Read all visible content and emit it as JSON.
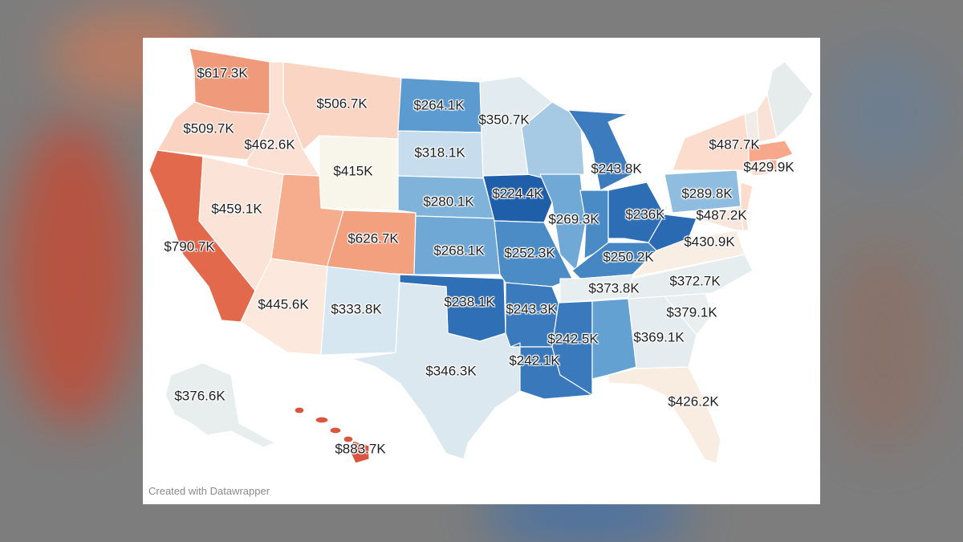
{
  "credit": "Created with Datawrapper",
  "colors": {
    "page_backdrop": "#7d7d7d",
    "card_background": "#ffffff",
    "state_border": "#ffffff",
    "label_text": "#1e1e1e",
    "credit_text": "#8a8a8a"
  },
  "states": [
    {
      "id": "washington",
      "label": "$617.3K",
      "color": "#ef9a7b"
    },
    {
      "id": "oregon",
      "label": "$509.7K",
      "color": "#fbd3c2"
    },
    {
      "id": "california",
      "label": "$790.7K",
      "color": "#e2694c"
    },
    {
      "id": "idaho",
      "label": "$462.6K",
      "color": "#fce0d3"
    },
    {
      "id": "nevada",
      "label": "$459.1K",
      "color": "#fce3d7"
    },
    {
      "id": "montana",
      "label": "$506.7K",
      "color": "#fbd5c4"
    },
    {
      "id": "wyoming",
      "label": "$415K",
      "color": "#f8f5ea"
    },
    {
      "id": "utah",
      "label": "",
      "color": "#f6ad8e"
    },
    {
      "id": "colorado",
      "label": "$626.7K",
      "color": "#f3a07f"
    },
    {
      "id": "arizona",
      "label": "$445.6K",
      "color": "#fde8de"
    },
    {
      "id": "new-mexico",
      "label": "$333.8K",
      "color": "#d7e7f1"
    },
    {
      "id": "north-dakota",
      "label": "$264.1K",
      "color": "#5b9bcf"
    },
    {
      "id": "south-dakota",
      "label": "$318.1K",
      "color": "#c7dced"
    },
    {
      "id": "nebraska",
      "label": "$280.1K",
      "color": "#7fb3da"
    },
    {
      "id": "kansas",
      "label": "$268.1K",
      "color": "#6fa8d5"
    },
    {
      "id": "oklahoma",
      "label": "$238.1K",
      "color": "#2f6fb5"
    },
    {
      "id": "texas",
      "label": "$346.3K",
      "color": "#dce8ef"
    },
    {
      "id": "minnesota",
      "label": "$350.7K",
      "color": "#e2ecf0"
    },
    {
      "id": "iowa",
      "label": "$224.4K",
      "color": "#1f5fa9"
    },
    {
      "id": "missouri",
      "label": "$252.3K",
      "color": "#4b8bc6"
    },
    {
      "id": "arkansas",
      "label": "$243.3K",
      "color": "#3b7bbd"
    },
    {
      "id": "louisiana",
      "label": "$242.1K",
      "color": "#3978bb"
    },
    {
      "id": "wisconsin",
      "label": "",
      "color": "#a6c9e4"
    },
    {
      "id": "illinois",
      "label": "$269.3K",
      "color": "#70a9d6"
    },
    {
      "id": "michigan",
      "label": "$243.8K",
      "color": "#3c7cbe"
    },
    {
      "id": "indiana",
      "label": "",
      "color": "#4a8ac5"
    },
    {
      "id": "ohio",
      "label": "$236K",
      "color": "#2d6db4"
    },
    {
      "id": "kentucky",
      "label": "$250.2K",
      "color": "#4686c3"
    },
    {
      "id": "tennessee",
      "label": "$373.8K",
      "color": "#e7eeef"
    },
    {
      "id": "mississippi",
      "label": "$242.5K",
      "color": "#3a79bc"
    },
    {
      "id": "alabama",
      "label": "",
      "color": "#63a1d2"
    },
    {
      "id": "georgia",
      "label": "$369.1K",
      "color": "#e5ecef"
    },
    {
      "id": "florida",
      "label": "$426.2K",
      "color": "#f9ede2"
    },
    {
      "id": "south-carolina",
      "label": "$379.1K",
      "color": "#e9efef"
    },
    {
      "id": "north-carolina",
      "label": "$372.7K",
      "color": "#e6edef"
    },
    {
      "id": "virginia",
      "label": "",
      "color": "#f9eee4"
    },
    {
      "id": "west-virginia",
      "label": "",
      "color": "#2a6ab3"
    },
    {
      "id": "pennsylvania",
      "label": "$289.8K",
      "color": "#8fbde0"
    },
    {
      "id": "new-york",
      "label": "$487.7K",
      "color": "#fbdccd"
    },
    {
      "id": "maryland",
      "label": "$430.9K",
      "color": "#fae6dc"
    },
    {
      "id": "new-jersey",
      "label": "$487.2K",
      "color": "#fbdccd"
    },
    {
      "id": "massachusetts",
      "label": "$429.9K",
      "color": "#f7a78a"
    },
    {
      "id": "vermont",
      "label": "",
      "color": "#f2ece8"
    },
    {
      "id": "new-hampshire",
      "label": "",
      "color": "#fbe2d6"
    },
    {
      "id": "maine",
      "label": "",
      "color": "#e6ecec"
    },
    {
      "id": "connecticut",
      "label": "",
      "color": "#fbdccd"
    },
    {
      "id": "rhode-island",
      "label": "",
      "color": "#f6b09a"
    },
    {
      "id": "delaware",
      "label": "",
      "color": "#fbe0d2"
    },
    {
      "id": "alaska",
      "label": "$376.6K",
      "color": "#e8eeee"
    },
    {
      "id": "hawaii",
      "label": "$883.7K",
      "color": "#d9553e"
    }
  ]
}
